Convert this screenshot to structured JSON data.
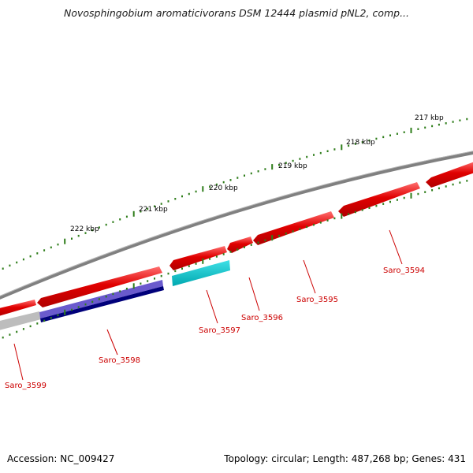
{
  "header": {
    "title": "Novosphingobium aromaticivorans DSM 12444 plasmid pNL2, comp..."
  },
  "footer": {
    "accession": "Accession: NC_009427",
    "summary": "Topology: circular; Length: 487,268 bp; Genes: 431"
  },
  "ruler": {
    "labels": [
      "222 kbp",
      "221 kbp",
      "220 kbp",
      "219 kbp",
      "218 kbp",
      "217 kbp"
    ]
  },
  "genes": {
    "labels": [
      "Saro_3599",
      "Saro_3598",
      "Saro_3597",
      "Saro_3596",
      "Saro_3595",
      "Saro_3594"
    ]
  },
  "colors": {
    "backbone": "#7a7a7a",
    "gene_forward": "#e00000",
    "gene_label": "#cc0000",
    "tick": "#2e7d1a",
    "cyan_track": "#00c0c8",
    "blue_track": "#000080",
    "gray_track": "#bbbbbb"
  }
}
